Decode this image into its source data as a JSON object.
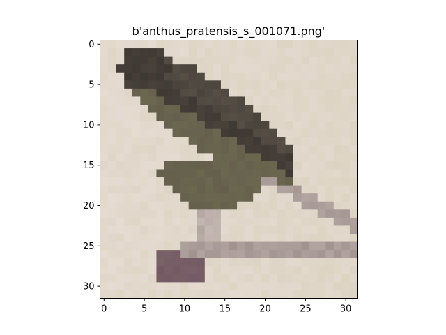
{
  "figure": {
    "title": "b'anthus_pratensis_s_001071.png'"
  },
  "image": {
    "description": "32x32 low-resolution photo of a small brown songbird perched on a branch",
    "palette": {
      "background_light": "#e6dcd4",
      "background_warm": "#dcd2c0",
      "bird_dark": "#3a3430",
      "bird_mid": "#5a5248",
      "bird_olive": "#6e6a50",
      "branch": "#8a7a78",
      "leaves_purple": "#6a4a5a"
    }
  },
  "axes": {
    "x_ticks": [
      "0",
      "5",
      "10",
      "15",
      "20",
      "25",
      "30"
    ],
    "y_ticks": [
      "0",
      "5",
      "10",
      "15",
      "20",
      "25",
      "30"
    ],
    "xlim": [
      -0.5,
      31.5
    ],
    "ylim": [
      31.5,
      -0.5
    ]
  }
}
